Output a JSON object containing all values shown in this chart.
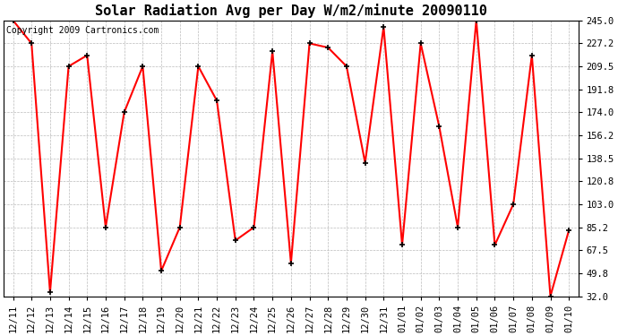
{
  "title": "Solar Radiation Avg per Day W/m2/minute 20090110",
  "copyright_text": "Copyright 2009 Cartronics.com",
  "x_labels": [
    "12/11",
    "12/12",
    "12/13",
    "12/14",
    "12/15",
    "12/16",
    "12/17",
    "12/18",
    "12/19",
    "12/20",
    "12/21",
    "12/22",
    "12/23",
    "12/24",
    "12/25",
    "12/26",
    "12/27",
    "12/28",
    "12/29",
    "12/30",
    "12/31",
    "01/01",
    "01/02",
    "01/03",
    "01/04",
    "01/05",
    "01/06",
    "01/07",
    "01/08",
    "01/09",
    "01/10"
  ],
  "y_values": [
    245.0,
    227.2,
    35.0,
    209.5,
    218.0,
    85.2,
    174.0,
    209.5,
    51.5,
    85.2,
    209.5,
    183.0,
    75.0,
    85.2,
    221.0,
    57.5,
    227.2,
    224.0,
    209.5,
    135.0,
    240.0,
    71.5,
    227.2,
    163.0,
    85.2,
    245.0,
    71.5,
    103.0,
    218.0,
    32.0,
    83.0
  ],
  "y_ticks": [
    32.0,
    49.8,
    67.5,
    85.2,
    103.0,
    120.8,
    138.5,
    156.2,
    174.0,
    191.8,
    209.5,
    227.2,
    245.0
  ],
  "y_min": 32.0,
  "y_max": 245.0,
  "line_color": "#ff0000",
  "marker_color": "#000000",
  "bg_color": "#ffffff",
  "grid_color": "#bbbbbb",
  "title_fontsize": 11,
  "copyright_fontsize": 7,
  "tick_fontsize": 7.5
}
